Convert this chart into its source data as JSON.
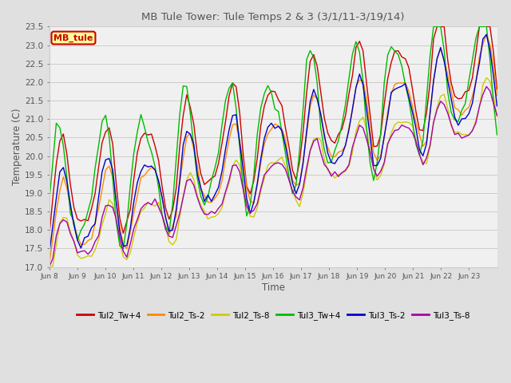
{
  "title": "MB Tule Tower: Tule Temps 2 & 3 (3/1/11-3/19/14)",
  "xlabel": "Time",
  "ylabel": "Temperature (C)",
  "ylim": [
    17.0,
    23.5
  ],
  "yticks": [
    17.0,
    17.5,
    18.0,
    18.5,
    19.0,
    19.5,
    20.0,
    20.5,
    21.0,
    21.5,
    22.0,
    22.5,
    23.0,
    23.5
  ],
  "xtick_labels": [
    "Jun 8",
    "Jun 9",
    "Jun 10",
    "Jun 11",
    "Jun 12",
    "Jun 13",
    "Jun 14",
    "Jun 15",
    "Jun 16",
    "Jun 17",
    "Jun 18",
    "Jun 19",
    "Jun 20",
    "Jun 21",
    "Jun 22",
    "Jun 23"
  ],
  "series_colors": [
    "#cc0000",
    "#ff8800",
    "#cccc00",
    "#00bb00",
    "#0000cc",
    "#aa00aa"
  ],
  "series_labels": [
    "Tul2_Tw+4",
    "Tul2_Ts-2",
    "Tul2_Ts-8",
    "Tul3_Tw+4",
    "Tul3_Ts-2",
    "Tul3_Ts-8"
  ],
  "legend_box_label": "MB_tule",
  "legend_box_color": "#cc0000",
  "legend_box_bg": "#ffff99",
  "background_color": "#e0e0e0",
  "plot_bg_color": "#f0f0f0",
  "title_color": "#555555",
  "axis_label_color": "#555555",
  "tick_color": "#555555",
  "grid_color": "#cccccc",
  "figwidth": 6.4,
  "figheight": 4.8,
  "dpi": 100
}
